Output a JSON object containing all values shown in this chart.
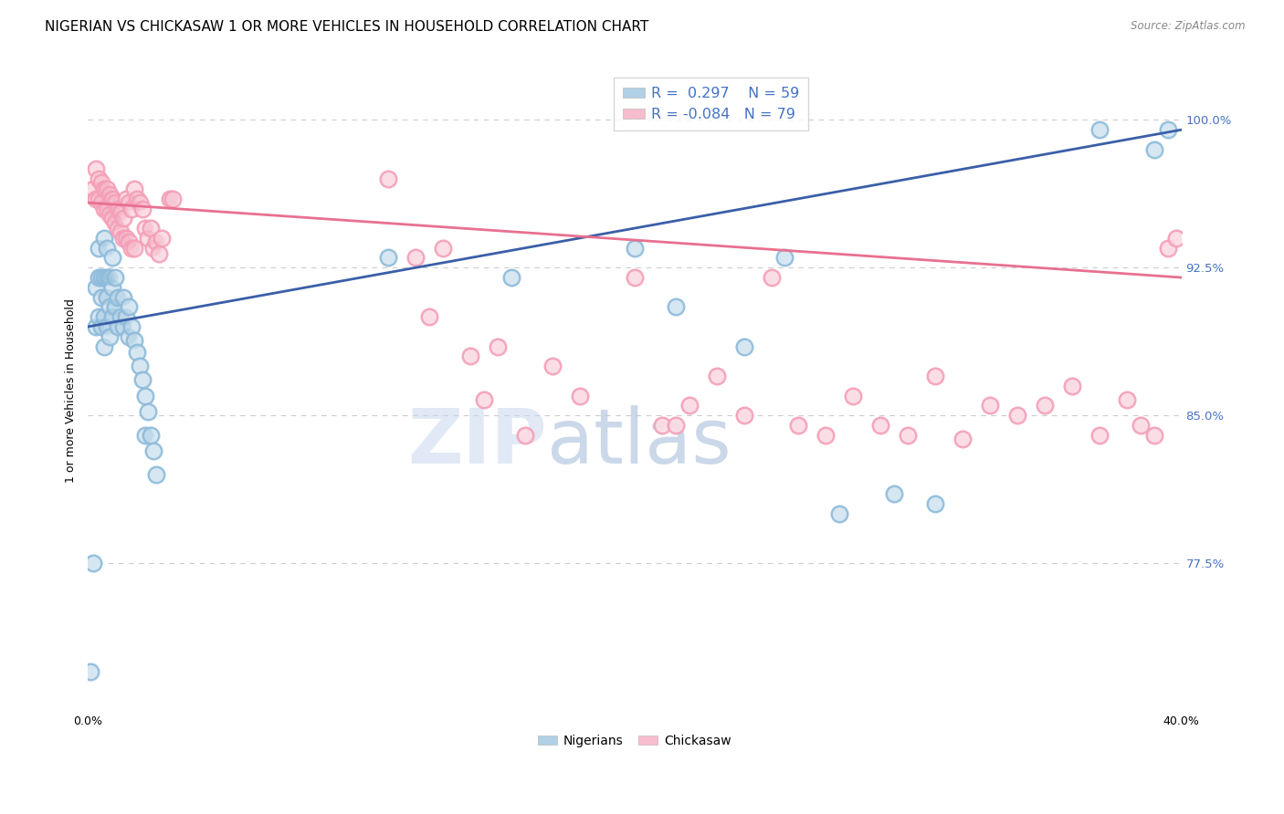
{
  "title": "NIGERIAN VS CHICKASAW 1 OR MORE VEHICLES IN HOUSEHOLD CORRELATION CHART",
  "source": "Source: ZipAtlas.com",
  "ylabel_label": "1 or more Vehicles in Household",
  "ytick_labels": [
    "77.5%",
    "85.0%",
    "92.5%",
    "100.0%"
  ],
  "ytick_values": [
    0.775,
    0.85,
    0.925,
    1.0
  ],
  "blue_color": "#8fbcdb",
  "pink_color": "#f4a0b8",
  "blue_line_color": "#3a5fa8",
  "pink_line_color": "#e87090",
  "legend_text_color": "#4472c4",
  "watermark_zip": "ZIP",
  "watermark_atlas": "atlas",
  "nigerians_label": "Nigerians",
  "chickasaw_label": "Chickasaw",
  "blue_scatter": [
    [
      0.001,
      0.72
    ],
    [
      0.002,
      0.775
    ],
    [
      0.003,
      0.895
    ],
    [
      0.003,
      0.915
    ],
    [
      0.004,
      0.9
    ],
    [
      0.004,
      0.92
    ],
    [
      0.004,
      0.935
    ],
    [
      0.005,
      0.895
    ],
    [
      0.005,
      0.91
    ],
    [
      0.005,
      0.92
    ],
    [
      0.006,
      0.885
    ],
    [
      0.006,
      0.9
    ],
    [
      0.006,
      0.92
    ],
    [
      0.006,
      0.94
    ],
    [
      0.007,
      0.895
    ],
    [
      0.007,
      0.91
    ],
    [
      0.007,
      0.92
    ],
    [
      0.007,
      0.935
    ],
    [
      0.008,
      0.89
    ],
    [
      0.008,
      0.905
    ],
    [
      0.008,
      0.92
    ],
    [
      0.009,
      0.9
    ],
    [
      0.009,
      0.915
    ],
    [
      0.009,
      0.93
    ],
    [
      0.01,
      0.905
    ],
    [
      0.01,
      0.92
    ],
    [
      0.011,
      0.895
    ],
    [
      0.011,
      0.91
    ],
    [
      0.012,
      0.9
    ],
    [
      0.013,
      0.895
    ],
    [
      0.013,
      0.91
    ],
    [
      0.014,
      0.9
    ],
    [
      0.015,
      0.89
    ],
    [
      0.015,
      0.905
    ],
    [
      0.016,
      0.895
    ],
    [
      0.017,
      0.888
    ],
    [
      0.018,
      0.882
    ],
    [
      0.019,
      0.875
    ],
    [
      0.02,
      0.868
    ],
    [
      0.021,
      0.86
    ],
    [
      0.021,
      0.84
    ],
    [
      0.022,
      0.852
    ],
    [
      0.023,
      0.84
    ],
    [
      0.024,
      0.832
    ],
    [
      0.025,
      0.82
    ],
    [
      0.11,
      0.93
    ],
    [
      0.155,
      0.92
    ],
    [
      0.2,
      0.935
    ],
    [
      0.215,
      0.905
    ],
    [
      0.24,
      0.885
    ],
    [
      0.255,
      0.93
    ],
    [
      0.275,
      0.8
    ],
    [
      0.295,
      0.81
    ],
    [
      0.31,
      0.805
    ],
    [
      0.37,
      0.995
    ],
    [
      0.39,
      0.985
    ],
    [
      0.395,
      0.995
    ]
  ],
  "pink_scatter": [
    [
      0.002,
      0.965
    ],
    [
      0.003,
      0.96
    ],
    [
      0.003,
      0.975
    ],
    [
      0.004,
      0.96
    ],
    [
      0.004,
      0.97
    ],
    [
      0.005,
      0.958
    ],
    [
      0.005,
      0.968
    ],
    [
      0.006,
      0.955
    ],
    [
      0.006,
      0.965
    ],
    [
      0.007,
      0.955
    ],
    [
      0.007,
      0.965
    ],
    [
      0.008,
      0.952
    ],
    [
      0.008,
      0.962
    ],
    [
      0.009,
      0.95
    ],
    [
      0.009,
      0.96
    ],
    [
      0.01,
      0.948
    ],
    [
      0.01,
      0.958
    ],
    [
      0.011,
      0.945
    ],
    [
      0.011,
      0.955
    ],
    [
      0.012,
      0.943
    ],
    [
      0.012,
      0.953
    ],
    [
      0.013,
      0.94
    ],
    [
      0.013,
      0.95
    ],
    [
      0.014,
      0.96
    ],
    [
      0.014,
      0.94
    ],
    [
      0.015,
      0.958
    ],
    [
      0.015,
      0.938
    ],
    [
      0.016,
      0.955
    ],
    [
      0.016,
      0.935
    ],
    [
      0.017,
      0.965
    ],
    [
      0.017,
      0.935
    ],
    [
      0.018,
      0.96
    ],
    [
      0.019,
      0.958
    ],
    [
      0.02,
      0.955
    ],
    [
      0.021,
      0.945
    ],
    [
      0.022,
      0.94
    ],
    [
      0.023,
      0.945
    ],
    [
      0.024,
      0.935
    ],
    [
      0.025,
      0.938
    ],
    [
      0.026,
      0.932
    ],
    [
      0.027,
      0.94
    ],
    [
      0.03,
      0.96
    ],
    [
      0.031,
      0.96
    ],
    [
      0.11,
      0.97
    ],
    [
      0.12,
      0.93
    ],
    [
      0.125,
      0.9
    ],
    [
      0.13,
      0.935
    ],
    [
      0.14,
      0.88
    ],
    [
      0.145,
      0.858
    ],
    [
      0.15,
      0.885
    ],
    [
      0.16,
      0.84
    ],
    [
      0.17,
      0.875
    ],
    [
      0.18,
      0.86
    ],
    [
      0.2,
      0.92
    ],
    [
      0.21,
      0.845
    ],
    [
      0.215,
      0.845
    ],
    [
      0.22,
      0.855
    ],
    [
      0.23,
      0.87
    ],
    [
      0.24,
      0.85
    ],
    [
      0.25,
      0.92
    ],
    [
      0.26,
      0.845
    ],
    [
      0.27,
      0.84
    ],
    [
      0.28,
      0.86
    ],
    [
      0.29,
      0.845
    ],
    [
      0.3,
      0.84
    ],
    [
      0.31,
      0.87
    ],
    [
      0.32,
      0.838
    ],
    [
      0.33,
      0.855
    ],
    [
      0.34,
      0.85
    ],
    [
      0.35,
      0.855
    ],
    [
      0.36,
      0.865
    ],
    [
      0.37,
      0.84
    ],
    [
      0.38,
      0.858
    ],
    [
      0.385,
      0.845
    ],
    [
      0.39,
      0.84
    ],
    [
      0.395,
      0.935
    ],
    [
      0.398,
      0.94
    ]
  ],
  "blue_line_x": [
    0.0,
    0.4
  ],
  "blue_line_y": [
    0.895,
    0.995
  ],
  "pink_line_x": [
    0.0,
    0.4
  ],
  "pink_line_y": [
    0.958,
    0.92
  ],
  "xmin": 0.0,
  "xmax": 0.4,
  "ymin": 0.7,
  "ymax": 1.025,
  "background_color": "#ffffff",
  "grid_color": "#cccccc",
  "title_fontsize": 11,
  "tick_color_right": "#4472c4"
}
